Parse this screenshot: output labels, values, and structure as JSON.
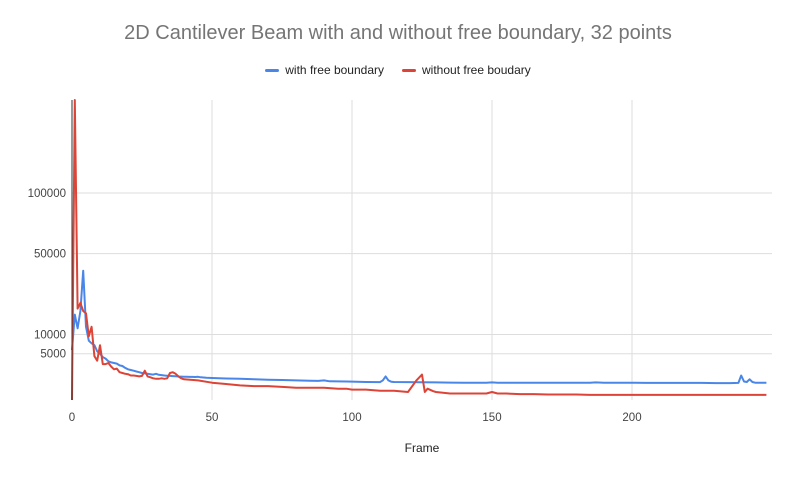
{
  "chart_data": {
    "type": "line",
    "title": "2D Cantilever Beam with and without free boundary, 32 points",
    "xlabel": "Frame",
    "ylabel": "",
    "xlim": [
      0,
      250
    ],
    "ylim": [
      0,
      210000
    ],
    "y_scale": "sqrt",
    "x_ticks": [
      0,
      50,
      100,
      150,
      200
    ],
    "y_ticks": [
      5000,
      10000,
      50000,
      100000
    ],
    "y_tick_labels": [
      "5000",
      "10000",
      "50000",
      "100000"
    ],
    "grid": true,
    "legend_position": "top",
    "series": [
      {
        "name": "with free boundary",
        "color": "#4a86e8",
        "x": [
          0,
          1,
          2,
          3,
          4,
          5,
          6,
          7,
          8,
          9,
          10,
          11,
          12,
          13,
          14,
          15,
          16,
          17,
          18,
          19,
          20,
          21,
          22,
          23,
          24,
          25,
          26,
          27,
          28,
          29,
          30,
          31,
          32,
          33,
          34,
          35,
          36,
          37,
          38,
          39,
          40,
          41,
          42,
          43,
          44,
          45,
          46,
          47,
          48,
          49,
          50,
          55,
          60,
          65,
          70,
          75,
          80,
          85,
          88,
          90,
          92,
          95,
          98,
          100,
          105,
          110,
          111,
          112,
          113,
          114,
          115,
          120,
          125,
          130,
          135,
          140,
          145,
          148,
          150,
          152,
          155,
          160,
          165,
          170,
          175,
          180,
          185,
          187,
          190,
          195,
          200,
          205,
          210,
          215,
          220,
          225,
          230,
          235,
          238,
          239,
          240,
          241,
          242,
          243,
          244,
          245,
          246,
          247,
          248
        ],
        "y": [
          5800,
          17000,
          12000,
          18500,
          39000,
          12500,
          8200,
          7500,
          7000,
          5500,
          5000,
          4300,
          4000,
          3500,
          3300,
          3200,
          3100,
          2800,
          2700,
          2400,
          2200,
          2100,
          2000,
          1900,
          1800,
          1700,
          1650,
          1600,
          1550,
          1500,
          1600,
          1480,
          1450,
          1400,
          1380,
          1350,
          1330,
          1310,
          1290,
          1280,
          1270,
          1260,
          1250,
          1240,
          1230,
          1260,
          1200,
          1180,
          1150,
          1140,
          1130,
          1080,
          1050,
          1000,
          960,
          930,
          900,
          860,
          850,
          900,
          820,
          810,
          800,
          790,
          760,
          750,
          900,
          1300,
          900,
          780,
          760,
          750,
          730,
          720,
          710,
          700,
          700,
          700,
          720,
          700,
          700,
          700,
          700,
          700,
          700,
          700,
          700,
          720,
          700,
          700,
          700,
          680,
          680,
          680,
          680,
          680,
          670,
          670,
          680,
          1400,
          800,
          760,
          1000,
          760,
          700,
          700,
          690,
          690,
          690
        ]
      },
      {
        "name": "without free boudary",
        "color": "#db4437",
        "x": [
          0,
          1,
          2,
          3,
          4,
          5,
          6,
          7,
          8,
          9,
          10,
          11,
          12,
          13,
          14,
          15,
          16,
          17,
          18,
          19,
          20,
          21,
          22,
          23,
          24,
          25,
          26,
          27,
          28,
          29,
          30,
          31,
          32,
          33,
          34,
          35,
          36,
          37,
          38,
          39,
          40,
          45,
          50,
          55,
          60,
          65,
          70,
          75,
          80,
          85,
          90,
          95,
          98,
          100,
          105,
          110,
          115,
          120,
          123,
          125,
          126,
          127,
          129,
          130,
          135,
          140,
          145,
          148,
          150,
          152,
          155,
          160,
          165,
          170,
          175,
          180,
          185,
          190,
          195,
          200,
          205,
          210,
          215,
          220,
          225,
          230,
          235,
          240,
          245,
          248
        ],
        "y": [
          0,
          210000,
          19500,
          22000,
          18500,
          17500,
          9500,
          12500,
          4500,
          3600,
          7000,
          3000,
          3000,
          3200,
          2600,
          2200,
          2300,
          1800,
          1700,
          1600,
          1550,
          1400,
          1400,
          1350,
          1300,
          1350,
          2000,
          1300,
          1200,
          1100,
          1050,
          1050,
          1100,
          1050,
          1100,
          1700,
          1800,
          1600,
          1300,
          1100,
          1000,
          900,
          700,
          600,
          500,
          450,
          450,
          400,
          350,
          350,
          350,
          300,
          300,
          250,
          250,
          200,
          200,
          150,
          900,
          1500,
          150,
          300,
          180,
          150,
          100,
          100,
          100,
          100,
          150,
          100,
          100,
          80,
          80,
          70,
          70,
          70,
          60,
          60,
          60,
          60,
          60,
          60,
          60,
          60,
          60,
          60,
          60,
          60,
          60,
          60
        ]
      }
    ]
  }
}
